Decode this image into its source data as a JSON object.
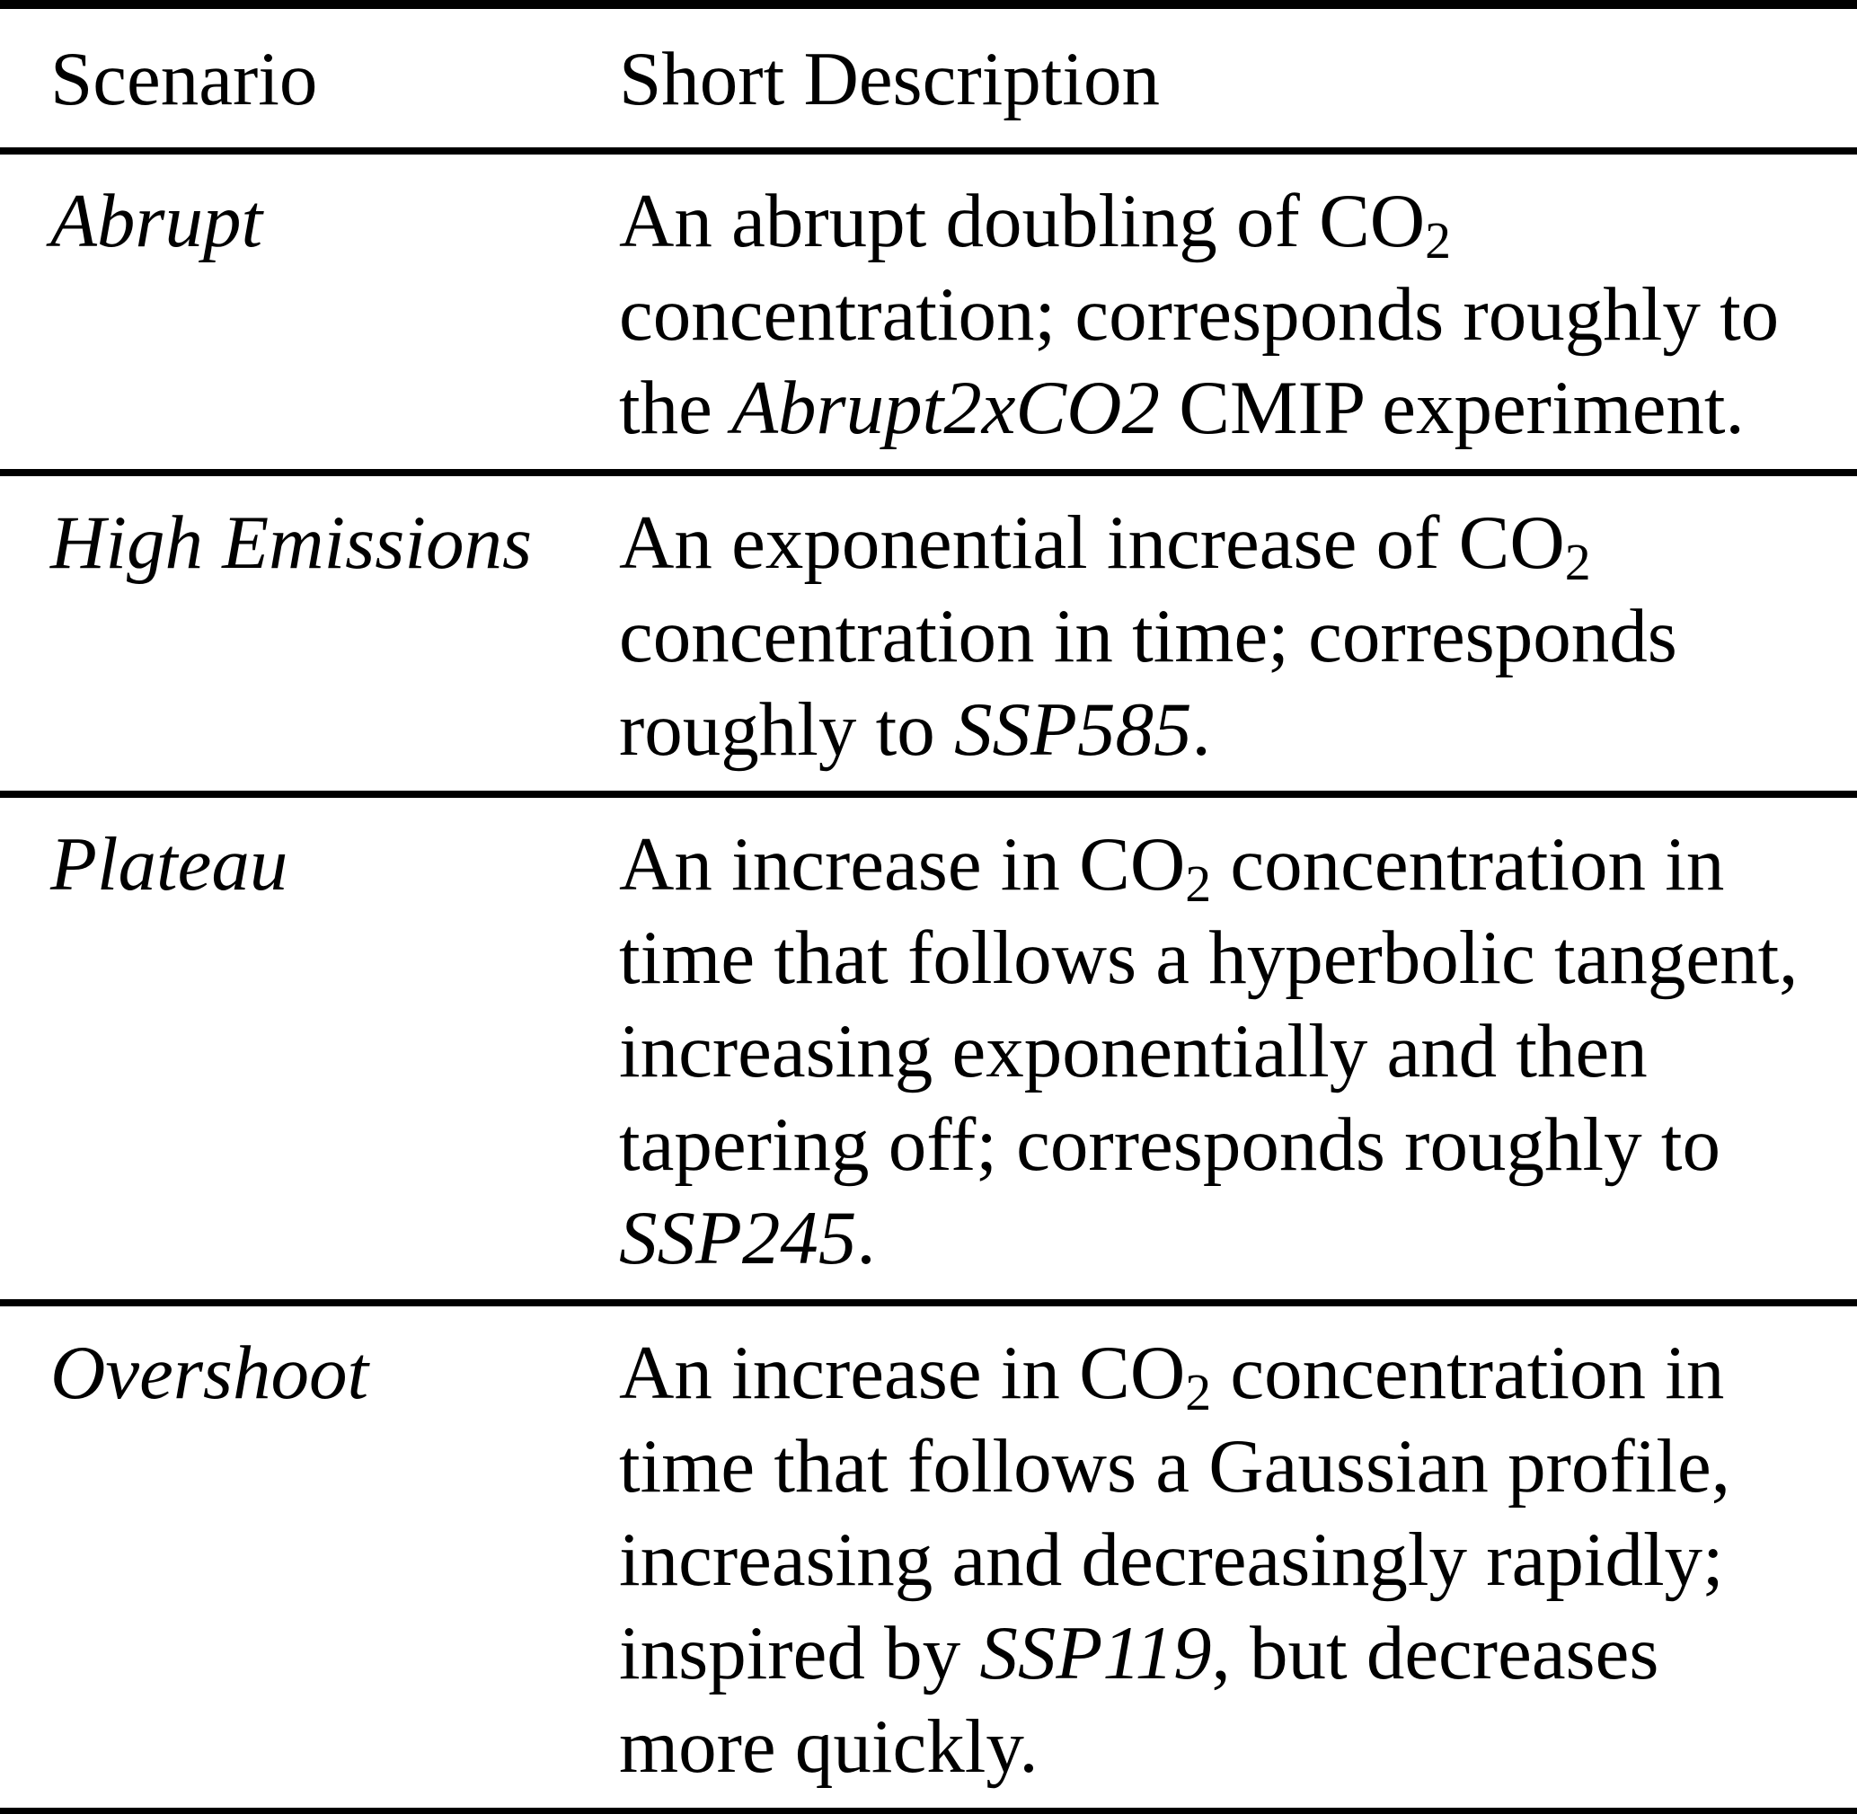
{
  "table": {
    "colors": {
      "text": "#000000",
      "background": "#ffffff",
      "rule": "#000000"
    },
    "header": {
      "scenario": "Scenario",
      "description": "Short Description"
    },
    "rows": [
      {
        "scenario": "Abrupt",
        "desc": [
          {
            "text": "An abrupt doubling of CO",
            "style": "normal"
          },
          {
            "text": "2",
            "style": "subscript"
          },
          {
            "text": " concentration; corresponds roughly to the ",
            "style": "normal"
          },
          {
            "text": "Abrupt2xCO2",
            "style": "italic"
          },
          {
            "text": " CMIP experiment.",
            "style": "normal"
          }
        ]
      },
      {
        "scenario": "High Emissions",
        "desc": [
          {
            "text": "An exponential increase of CO",
            "style": "normal"
          },
          {
            "text": "2",
            "style": "subscript"
          },
          {
            "text": " concentration in time; corresponds roughly to ",
            "style": "normal"
          },
          {
            "text": "SSP585",
            "style": "italic"
          },
          {
            "text": ".",
            "style": "normal"
          }
        ]
      },
      {
        "scenario": "Plateau",
        "desc": [
          {
            "text": "An increase in CO",
            "style": "normal"
          },
          {
            "text": "2",
            "style": "subscript"
          },
          {
            "text": " concentration in time that follows a hyperbolic tangent, increasing exponentially and then tapering off; corresponds roughly to ",
            "style": "normal"
          },
          {
            "text": "SSP245",
            "style": "italic"
          },
          {
            "text": ".",
            "style": "normal"
          }
        ]
      },
      {
        "scenario": "Overshoot",
        "desc": [
          {
            "text": "An increase in CO",
            "style": "normal"
          },
          {
            "text": "2",
            "style": "subscript"
          },
          {
            "text": " concentration in time that follows a Gaussian profile, increasing and decreasingly rapidly; inspired by ",
            "style": "normal"
          },
          {
            "text": "SSP119",
            "style": "italic"
          },
          {
            "text": ", but decreases more quickly.",
            "style": "normal"
          }
        ]
      }
    ]
  }
}
